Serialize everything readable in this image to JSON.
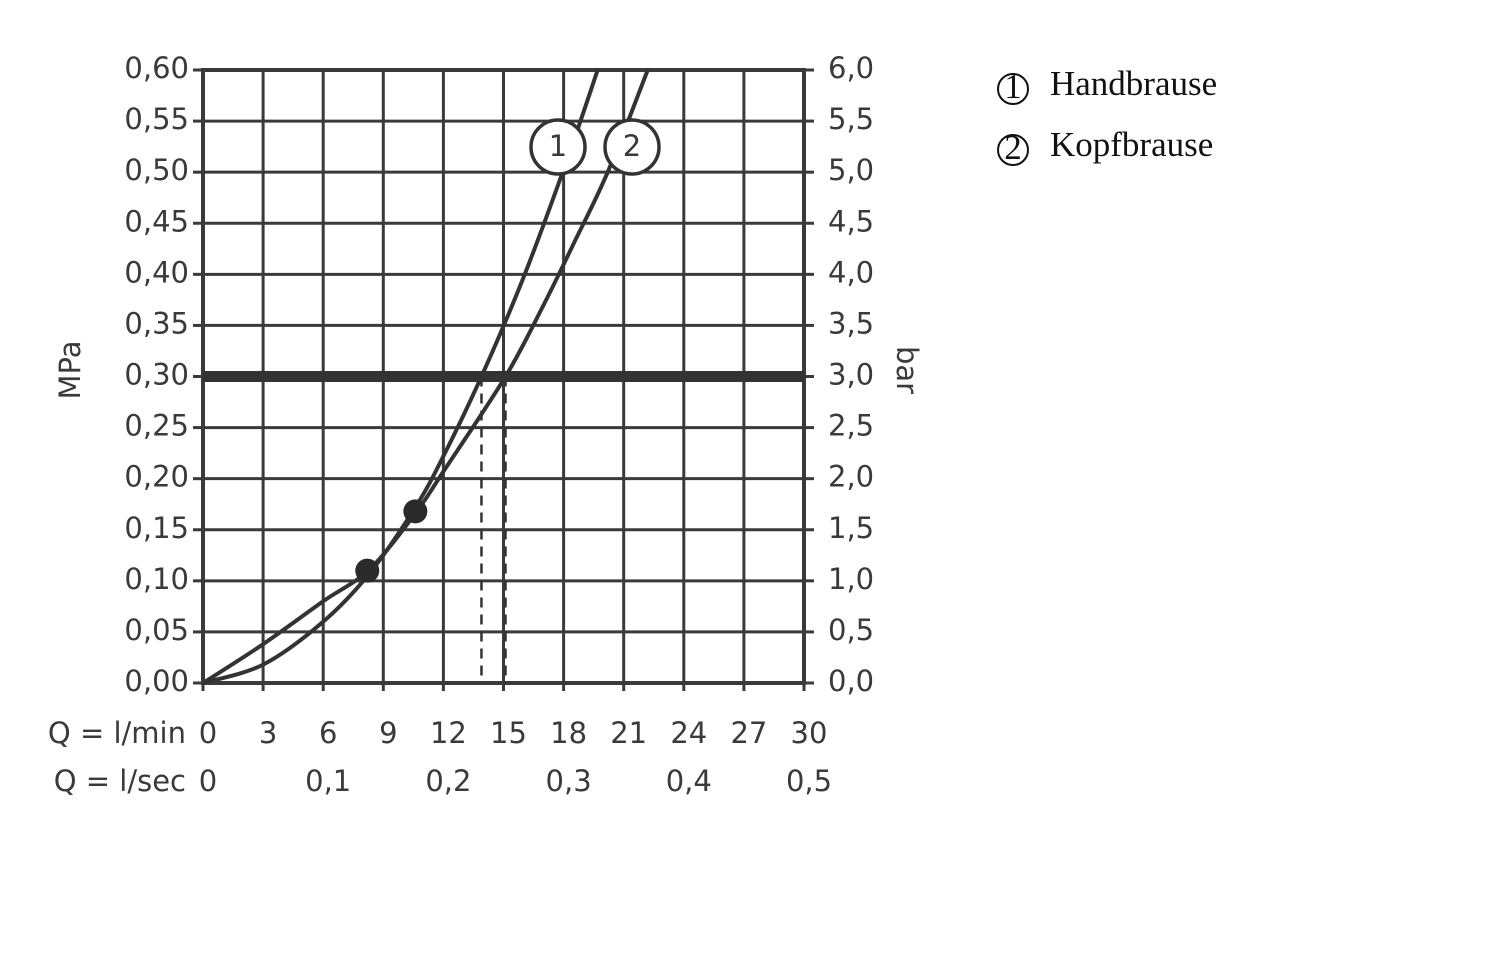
{
  "chart_data": {
    "type": "line",
    "x_label": "Q = l/min",
    "x2_label": "Q = l/sec",
    "y_label": "MPa",
    "y2_label": "bar",
    "xlim": [
      0,
      30
    ],
    "xticks": [
      0,
      3,
      6,
      9,
      12,
      15,
      18,
      21,
      24,
      27,
      30
    ],
    "x2lim": [
      0,
      0.5
    ],
    "x2ticks": [
      0,
      {
        "value": 0.1,
        "label": "0,1"
      },
      {
        "value": 0.2,
        "label": "0,2"
      },
      {
        "value": 0.3,
        "label": "0,3"
      },
      {
        "value": 0.4,
        "label": "0,4"
      },
      {
        "value": 0.5,
        "label": "0,5"
      }
    ],
    "ylim": [
      0,
      0.6
    ],
    "yticks": [
      {
        "value": 0,
        "label": "0,00"
      },
      {
        "value": 0.05,
        "label": "0,05"
      },
      {
        "value": 0.1,
        "label": "0,10"
      },
      {
        "value": 0.15,
        "label": "0,15"
      },
      {
        "value": 0.2,
        "label": "0,20"
      },
      {
        "value": 0.25,
        "label": "0,25"
      },
      {
        "value": 0.3,
        "label": "0,30"
      },
      {
        "value": 0.35,
        "label": "0,35"
      },
      {
        "value": 0.4,
        "label": "0,40"
      },
      {
        "value": 0.45,
        "label": "0,45"
      },
      {
        "value": 0.5,
        "label": "0,50"
      },
      {
        "value": 0.55,
        "label": "0,55"
      },
      {
        "value": 0.6,
        "label": "0,60"
      }
    ],
    "y2lim": [
      0,
      6
    ],
    "y2ticks": [
      {
        "value": 0,
        "label": "0,0"
      },
      {
        "value": 0.5,
        "label": "0,5"
      },
      {
        "value": 1,
        "label": "1,0"
      },
      {
        "value": 1.5,
        "label": "1,5"
      },
      {
        "value": 2,
        "label": "2,0"
      },
      {
        "value": 2.5,
        "label": "2,5"
      },
      {
        "value": 3,
        "label": "3,0"
      },
      {
        "value": 3.5,
        "label": "3,5"
      },
      {
        "value": 4,
        "label": "4,0"
      },
      {
        "value": 4.5,
        "label": "4,5"
      },
      {
        "value": 5,
        "label": "5,0"
      },
      {
        "value": 5.5,
        "label": "5,5"
      },
      {
        "value": 6,
        "label": "6,0"
      }
    ],
    "grid": true,
    "reference_line": 0.3,
    "drop_lines": [
      13.9,
      15.1
    ],
    "operating_points": [
      {
        "x": 8.2,
        "y": 0.11
      },
      {
        "x": 10.6,
        "y": 0.168
      }
    ],
    "series": [
      {
        "name": "Handbrause",
        "label": "1",
        "color": "#333333",
        "x": [
          0,
          3,
          6,
          8.3,
          10.6,
          12,
          13.9,
          16,
          18.1,
          19.7
        ],
        "values": [
          0,
          0.018,
          0.06,
          0.107,
          0.172,
          0.222,
          0.3,
          0.397,
          0.508,
          0.6
        ]
      },
      {
        "name": "Kopfbrause",
        "label": "2",
        "color": "#333333",
        "x": [
          0,
          3,
          6,
          8.3,
          10.6,
          12,
          15.1,
          17,
          18.5,
          20.2,
          22.2
        ],
        "values": [
          0,
          0.038,
          0.08,
          0.111,
          0.166,
          0.207,
          0.3,
          0.37,
          0.43,
          0.5,
          0.6
        ]
      }
    ]
  }
}
